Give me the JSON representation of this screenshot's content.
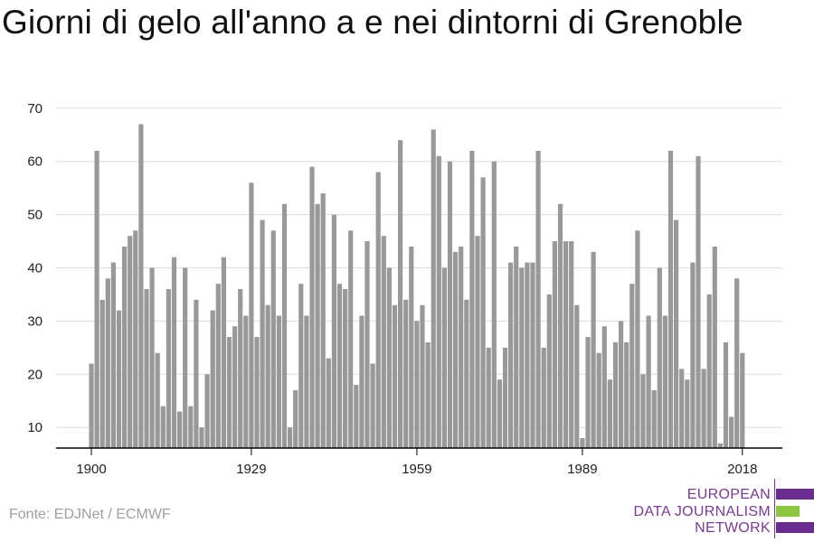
{
  "title": "Giorni di gelo all'anno a e nei dintorni di Grenoble",
  "source": "Fonte: EDJNet / ECMWF",
  "logo": {
    "lines": [
      "EUROPEAN",
      "DATA JOURNALISM",
      "NETWORK"
    ],
    "colors": {
      "purple": "#6b2c91",
      "green": "#8cc63f"
    }
  },
  "colors": {
    "bar": "#999999",
    "grid": "#dddddd",
    "axis": "#000000",
    "text": "#222222"
  },
  "chart_data": {
    "type": "bar",
    "title": "Giorni di gelo all'anno a e nei dintorni di Grenoble",
    "x_start": 1900,
    "x_end": 2018,
    "x_ticks": [
      1900,
      1929,
      1959,
      1989,
      2018
    ],
    "y_ticks": [
      10,
      20,
      30,
      40,
      50,
      60,
      70
    ],
    "ylim": [
      6,
      70
    ],
    "grid": true,
    "values": [
      22,
      62,
      34,
      38,
      41,
      32,
      44,
      46,
      47,
      67,
      36,
      40,
      24,
      14,
      36,
      42,
      13,
      40,
      14,
      34,
      10,
      20,
      32,
      37,
      42,
      27,
      29,
      36,
      31,
      56,
      27,
      49,
      33,
      47,
      31,
      52,
      10,
      17,
      37,
      31,
      59,
      52,
      54,
      23,
      50,
      37,
      36,
      47,
      18,
      31,
      45,
      22,
      58,
      46,
      40,
      33,
      64,
      34,
      44,
      30,
      33,
      26,
      66,
      61,
      40,
      60,
      43,
      44,
      34,
      62,
      46,
      57,
      25,
      60,
      19,
      25,
      41,
      44,
      40,
      41,
      41,
      62,
      25,
      35,
      45,
      52,
      45,
      45,
      33,
      8,
      27,
      43,
      24,
      29,
      19,
      26,
      30,
      26,
      37,
      47,
      20,
      31,
      17,
      40,
      31,
      62,
      49,
      21,
      19,
      41,
      61,
      21,
      35,
      44,
      7,
      26,
      12,
      38,
      24
    ]
  }
}
